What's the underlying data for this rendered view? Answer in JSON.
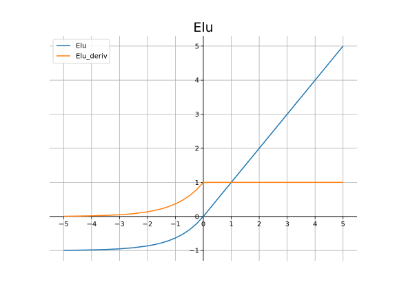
{
  "chart_data": {
    "type": "line",
    "title": "Elu",
    "xlabel": "",
    "ylabel": "",
    "xlim": [
      -5.5,
      5.5
    ],
    "ylim": [
      -1.3,
      5.3
    ],
    "xticks": [
      -5,
      -4,
      -3,
      -2,
      -1,
      0,
      1,
      2,
      3,
      4,
      5
    ],
    "yticks": [
      -1,
      0,
      1,
      2,
      3,
      4,
      5
    ],
    "xtick_labels": [
      "−5",
      "−4",
      "−3",
      "−2",
      "−1",
      "0",
      "1",
      "2",
      "3",
      "4",
      "5"
    ],
    "ytick_labels": [
      "−1",
      "0",
      "1",
      "2",
      "3",
      "4",
      "5"
    ],
    "grid": true,
    "legend_position": "top-left",
    "x": [
      -5,
      -4.5,
      -4,
      -3.5,
      -3,
      -2.5,
      -2,
      -1.75,
      -1.5,
      -1.25,
      -1,
      -0.75,
      -0.5,
      -0.25,
      0,
      1,
      2,
      3,
      4,
      5
    ],
    "series": [
      {
        "name": "Elu",
        "color": "#1f77b4",
        "values": [
          -0.993,
          -0.989,
          -0.982,
          -0.97,
          -0.95,
          -0.918,
          -0.865,
          -0.826,
          -0.777,
          -0.713,
          -0.632,
          -0.528,
          -0.393,
          -0.221,
          0,
          1,
          2,
          3,
          4,
          5
        ]
      },
      {
        "name": "Elu_deriv",
        "color": "#ff7f0e",
        "values": [
          0.007,
          0.011,
          0.018,
          0.03,
          0.05,
          0.082,
          0.135,
          0.174,
          0.223,
          0.287,
          0.368,
          0.472,
          0.607,
          0.779,
          1,
          1,
          1,
          1,
          1,
          1
        ]
      }
    ]
  }
}
